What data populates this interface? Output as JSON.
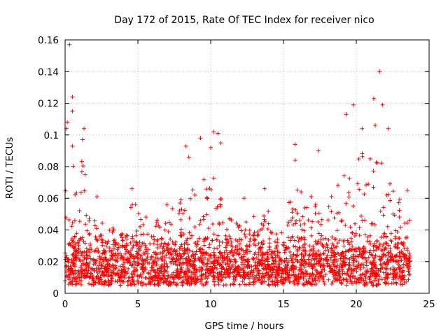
{
  "chart_data": {
    "type": "scatter",
    "title": "Day 172 of 2015, Rate Of TEC Index for receiver nico",
    "xlabel": "GPS time / hours",
    "ylabel": "ROTI / TECUs",
    "xlim": [
      0,
      25
    ],
    "ylim": [
      0,
      0.16
    ],
    "x_ticks": [
      0,
      5,
      10,
      15,
      20,
      25
    ],
    "y_ticks": [
      0,
      0.02,
      0.04,
      0.06,
      0.08,
      0.1,
      0.12,
      0.14,
      0.16
    ],
    "x_tick_labels": [
      "0",
      "5",
      "10",
      "15",
      "20",
      "25"
    ],
    "y_tick_labels": [
      "0",
      "0.02",
      "0.04",
      "0.06",
      "0.08",
      "0.1",
      "0.12",
      "0.14",
      "0.16"
    ],
    "grid": true,
    "marker": "+",
    "marker_color": "#ff0000",
    "data_x_range": [
      0,
      23.7
    ],
    "typical_y_range": [
      0.005,
      0.04
    ],
    "series": [
      {
        "name": "ROTI",
        "points": [
          [
            0.3,
            0.157
          ],
          [
            0.5,
            0.124
          ],
          [
            0.5,
            0.115
          ],
          [
            0.15,
            0.108
          ],
          [
            0.1,
            0.104
          ],
          [
            1.3,
            0.104
          ],
          [
            1.2,
            0.097
          ],
          [
            0.5,
            0.093
          ],
          [
            8.3,
            0.093
          ],
          [
            9.3,
            0.098
          ],
          [
            10.2,
            0.102
          ],
          [
            10.5,
            0.101
          ],
          [
            10.0,
            0.092
          ],
          [
            10.7,
            0.095
          ],
          [
            19.3,
            0.113
          ],
          [
            19.8,
            0.119
          ],
          [
            21.2,
            0.123
          ],
          [
            21.6,
            0.14
          ],
          [
            21.8,
            0.119
          ],
          [
            21.3,
            0.106
          ],
          [
            22.2,
            0.104
          ],
          [
            20.4,
            0.104
          ],
          [
            15.8,
            0.094
          ],
          [
            15.8,
            0.084
          ],
          [
            17.4,
            0.09
          ],
          [
            8.5,
            0.086
          ],
          [
            4.6,
            0.066
          ],
          [
            13.7,
            0.066
          ],
          [
            23.5,
            0.065
          ],
          [
            2.2,
            0.061
          ],
          [
            7.0,
            0.056
          ],
          [
            12.3,
            0.06
          ],
          [
            16.9,
            0.061
          ],
          [
            18.3,
            0.061
          ]
        ]
      }
    ]
  }
}
